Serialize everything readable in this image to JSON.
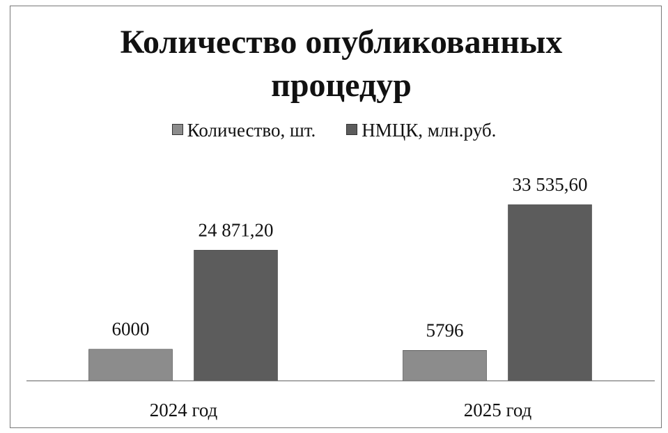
{
  "chart_data": {
    "type": "bar",
    "title": "Количество опубликованных процедур",
    "categories": [
      "2024 год",
      "2025 год"
    ],
    "series": [
      {
        "name": "Количество, шт.",
        "color": "#8c8c8c",
        "values": [
          6000,
          5796
        ],
        "value_labels": [
          "6000",
          "5796"
        ]
      },
      {
        "name": "НМЦК, млн.руб.",
        "color": "#5c5c5c",
        "values": [
          24871.2,
          33535.6
        ],
        "value_labels": [
          "24 871,20",
          "33 535,60"
        ]
      }
    ]
  }
}
